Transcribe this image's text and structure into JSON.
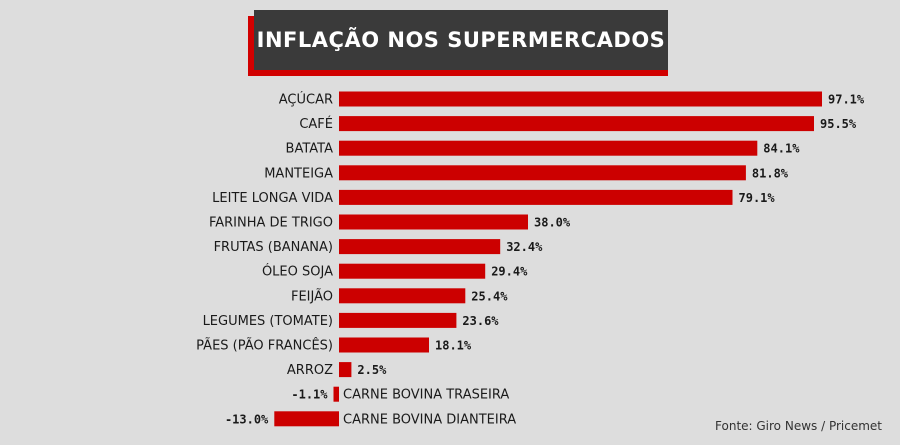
{
  "chart_data": {
    "type": "bar",
    "orientation": "horizontal",
    "title": "INFLAÇÃO NOS SUPERMERCADOS",
    "categories": [
      "AÇÚCAR",
      "CAFÉ",
      "BATATA",
      "MANTEIGA",
      "LEITE LONGA VIDA",
      "FARINHA DE TRIGO",
      "FRUTAS (BANANA)",
      "ÓLEO SOJA",
      "FEIJÃO",
      "LEGUMES (TOMATE)",
      "PÃES (PÃO FRANCÊS)",
      "ARROZ",
      "CARNE BOVINA TRASEIRA",
      "CARNE BOVINA DIANTEIRA"
    ],
    "values": [
      97.1,
      95.5,
      84.1,
      81.8,
      79.1,
      38.0,
      32.4,
      29.4,
      25.4,
      23.6,
      18.1,
      2.5,
      -1.1,
      -13.0
    ],
    "value_labels": [
      "97.1%",
      "95.5%",
      "84.1%",
      "81.8%",
      "79.1%",
      "38.0%",
      "32.4%",
      "29.4%",
      "25.4%",
      "23.6%",
      "18.1%",
      "2.5%",
      "-1.1%",
      "-13.0%"
    ],
    "bar_color": "#cc0000",
    "source": "Fonte: Giro News / Pricemet"
  }
}
